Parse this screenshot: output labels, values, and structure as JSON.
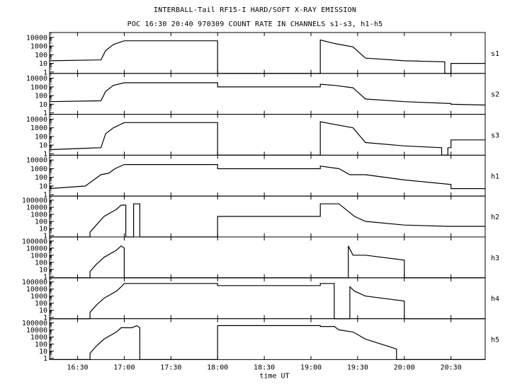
{
  "chart_data": {
    "type": "line",
    "title": "INTERBALL-Tail RF15-I HARD/SOFT X-RAY EMISSION",
    "subtitle": "POC 16:30 20:40 970309  COUNT RATE IN CHANNELS s1-s3, h1-h5",
    "xlabel": "time UT",
    "x_ticks": [
      "16:30",
      "17:00",
      "17:30",
      "18:00",
      "18:30",
      "19:00",
      "19:30",
      "20:00",
      "20:30"
    ],
    "xlim": [
      "16:12",
      "20:52"
    ],
    "y_scale": "log",
    "grid": false,
    "panels": [
      {
        "name": "s1",
        "yticks": [
          "10000",
          "1000",
          "100",
          "10",
          "1"
        ],
        "ylim": [
          1,
          30000
        ],
        "x": [
          "16:12",
          "16:45",
          "16:48",
          "16:53",
          "17:00",
          "18:00",
          "18:00",
          "19:06",
          "19:06",
          "19:15",
          "19:27",
          "19:35",
          "20:00",
          "20:26",
          "20:26",
          "20:30",
          "20:30",
          "20:52"
        ],
        "y": [
          20,
          25,
          300,
          1500,
          4000,
          4000,
          0,
          0,
          5000,
          2000,
          800,
          40,
          20,
          15,
          0,
          0,
          10,
          10
        ]
      },
      {
        "name": "s2",
        "yticks": [
          "10000",
          "1000",
          "100",
          "10",
          "1"
        ],
        "ylim": [
          1,
          30000
        ],
        "x": [
          "16:12",
          "16:45",
          "16:48",
          "16:53",
          "17:00",
          "18:00",
          "18:00",
          "19:06",
          "19:06",
          "19:15",
          "19:27",
          "19:35",
          "20:00",
          "20:30",
          "20:30",
          "20:52"
        ],
        "y": [
          20,
          25,
          300,
          1500,
          3000,
          3000,
          1000,
          1000,
          2000,
          1500,
          800,
          40,
          20,
          12,
          10,
          8
        ]
      },
      {
        "name": "s3",
        "yticks": [
          "10000",
          "1000",
          "100",
          "10",
          "1"
        ],
        "ylim": [
          1,
          30000
        ],
        "x": [
          "16:12",
          "16:45",
          "16:48",
          "16:53",
          "17:00",
          "18:00",
          "18:00",
          "19:06",
          "19:06",
          "19:15",
          "19:27",
          "19:35",
          "20:00",
          "20:24",
          "20:24",
          "20:28",
          "20:28",
          "20:30",
          "20:30",
          "20:52"
        ],
        "y": [
          3,
          5,
          200,
          1000,
          4000,
          4000,
          0,
          0,
          5000,
          2500,
          1000,
          20,
          8,
          5,
          0,
          0,
          5,
          5,
          40,
          40
        ]
      },
      {
        "name": "h1",
        "yticks": [
          "10000",
          "1000",
          "100",
          "10",
          "1"
        ],
        "ylim": [
          1,
          30000
        ],
        "x": [
          "16:12",
          "16:35",
          "16:45",
          "16:50",
          "16:54",
          "17:00",
          "18:00",
          "18:00",
          "19:06",
          "19:06",
          "19:18",
          "19:25",
          "19:35",
          "20:00",
          "20:30",
          "20:30",
          "20:52"
        ],
        "y": [
          5,
          10,
          200,
          300,
          1000,
          3000,
          3000,
          1000,
          1000,
          2000,
          1000,
          200,
          200,
          50,
          15,
          5,
          5
        ]
      },
      {
        "name": "h2",
        "yticks": [
          "100000",
          "10000",
          "1000",
          "100",
          "10",
          "1"
        ],
        "ylim": [
          1,
          300000
        ],
        "x": [
          "16:12",
          "16:38",
          "16:38",
          "16:42",
          "16:47",
          "16:55",
          "16:58",
          "16:58",
          "17:01",
          "17:01",
          "17:06",
          "17:06",
          "17:10",
          "17:10",
          "18:00",
          "18:00",
          "19:06",
          "19:06",
          "19:18",
          "19:28",
          "19:35",
          "20:00",
          "20:28",
          "20:28",
          "20:52"
        ],
        "y": [
          0,
          0,
          3,
          30,
          500,
          5000,
          20000,
          20000,
          20000,
          0,
          0,
          30000,
          30000,
          0,
          0,
          500,
          500,
          30000,
          30000,
          500,
          100,
          30,
          20,
          20,
          20
        ]
      },
      {
        "name": "h3",
        "yticks": [
          "100000",
          "10000",
          "1000",
          "100",
          "10",
          "1"
        ],
        "ylim": [
          1,
          300000
        ],
        "x": [
          "16:12",
          "16:38",
          "16:38",
          "16:42",
          "16:47",
          "16:55",
          "16:58",
          "17:00",
          "17:00",
          "19:24",
          "19:24",
          "19:27",
          "19:35",
          "20:00",
          "20:00",
          "20:52"
        ],
        "y": [
          0,
          0,
          5,
          50,
          500,
          5000,
          20000,
          10000,
          0,
          0,
          20000,
          1000,
          1000,
          200,
          0,
          0
        ]
      },
      {
        "name": "h4",
        "yticks": [
          "100000",
          "10000",
          "1000",
          "100",
          "10",
          "1"
        ],
        "ylim": [
          1,
          300000
        ],
        "x": [
          "16:12",
          "16:38",
          "16:38",
          "16:42",
          "16:47",
          "16:55",
          "16:58",
          "17:00",
          "17:00",
          "18:00",
          "18:00",
          "19:06",
          "19:06",
          "19:15",
          "19:15",
          "19:25",
          "19:25",
          "19:28",
          "19:35",
          "20:00",
          "20:00",
          "20:52"
        ],
        "y": [
          0,
          0,
          5,
          50,
          500,
          5000,
          20000,
          60000,
          60000,
          60000,
          30000,
          30000,
          60000,
          60000,
          0,
          0,
          20000,
          5000,
          1000,
          200,
          0,
          0
        ]
      },
      {
        "name": "h5",
        "yticks": [
          "100000",
          "10000",
          "1000",
          "100",
          "10",
          "1"
        ],
        "ylim": [
          1,
          300000
        ],
        "x": [
          "16:12",
          "16:38",
          "16:38",
          "16:42",
          "16:47",
          "16:55",
          "16:58",
          "17:05",
          "17:08",
          "17:10",
          "17:10",
          "18:00",
          "18:00",
          "19:06",
          "19:06",
          "19:15",
          "19:18",
          "19:27",
          "19:35",
          "19:55",
          "19:55",
          "20:52"
        ],
        "y": [
          0,
          0,
          5,
          50,
          500,
          5000,
          20000,
          20000,
          40000,
          20000,
          0,
          0,
          40000,
          40000,
          30000,
          30000,
          10000,
          5000,
          500,
          20,
          0,
          0
        ]
      }
    ]
  }
}
